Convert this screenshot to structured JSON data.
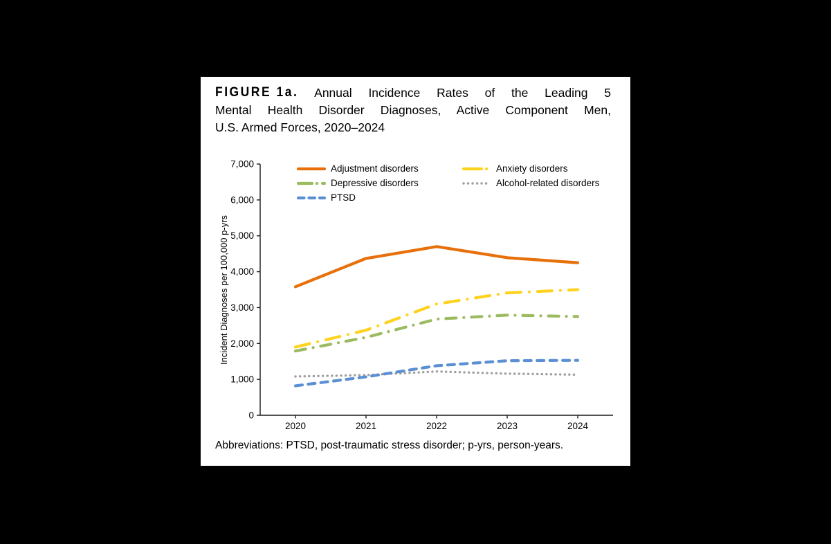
{
  "panel": {
    "title": {
      "label": "FIGURE 1a.",
      "line1": "Annual Incidence Rates of the Leading 5",
      "line2": "Mental Health Disorder Diagnoses, Active Component Men,",
      "line3": "U.S. Armed Forces, 2020–2024"
    },
    "footnote": "Abbreviations: PTSD, post-traumatic stress disorder; p-yrs, person-years."
  },
  "chart_data": {
    "type": "line",
    "title": "",
    "xlabel": "",
    "ylabel": "Incident Diagnoses per 100,000 p-yrs",
    "ylim": [
      0,
      7000
    ],
    "ytick_values": [
      0,
      1000,
      2000,
      3000,
      4000,
      5000,
      6000,
      7000
    ],
    "ytick_labels": [
      "0",
      "1,000",
      "2,000",
      "3,000",
      "4,000",
      "5,000",
      "6,000",
      "7,000"
    ],
    "categories": [
      "2020",
      "2021",
      "2022",
      "2023",
      "2024"
    ],
    "grid": false,
    "legend_position": "top-inside, two columns",
    "axis_color": "#1a1a1a",
    "series": [
      {
        "name": "Adjustment disorders",
        "color": "#E8700A",
        "style": "solid",
        "values": [
          3580,
          4370,
          4700,
          4390,
          4250
        ]
      },
      {
        "name": "Anxiety disorders",
        "color": "#FFD21F",
        "style": "long-dash-dot",
        "values": [
          1900,
          2370,
          3100,
          3410,
          3500
        ]
      },
      {
        "name": "Depressive disorders",
        "color": "#9CBA5F",
        "style": "dash-dot",
        "values": [
          1790,
          2170,
          2680,
          2790,
          2750
        ]
      },
      {
        "name": "Alcohol-related disorders",
        "color": "#9E9E9E",
        "style": "dotted",
        "values": [
          1080,
          1120,
          1220,
          1160,
          1130
        ]
      },
      {
        "name": "PTSD",
        "color": "#5B8FD4",
        "style": "dashed",
        "values": [
          820,
          1070,
          1380,
          1520,
          1530
        ]
      }
    ]
  }
}
